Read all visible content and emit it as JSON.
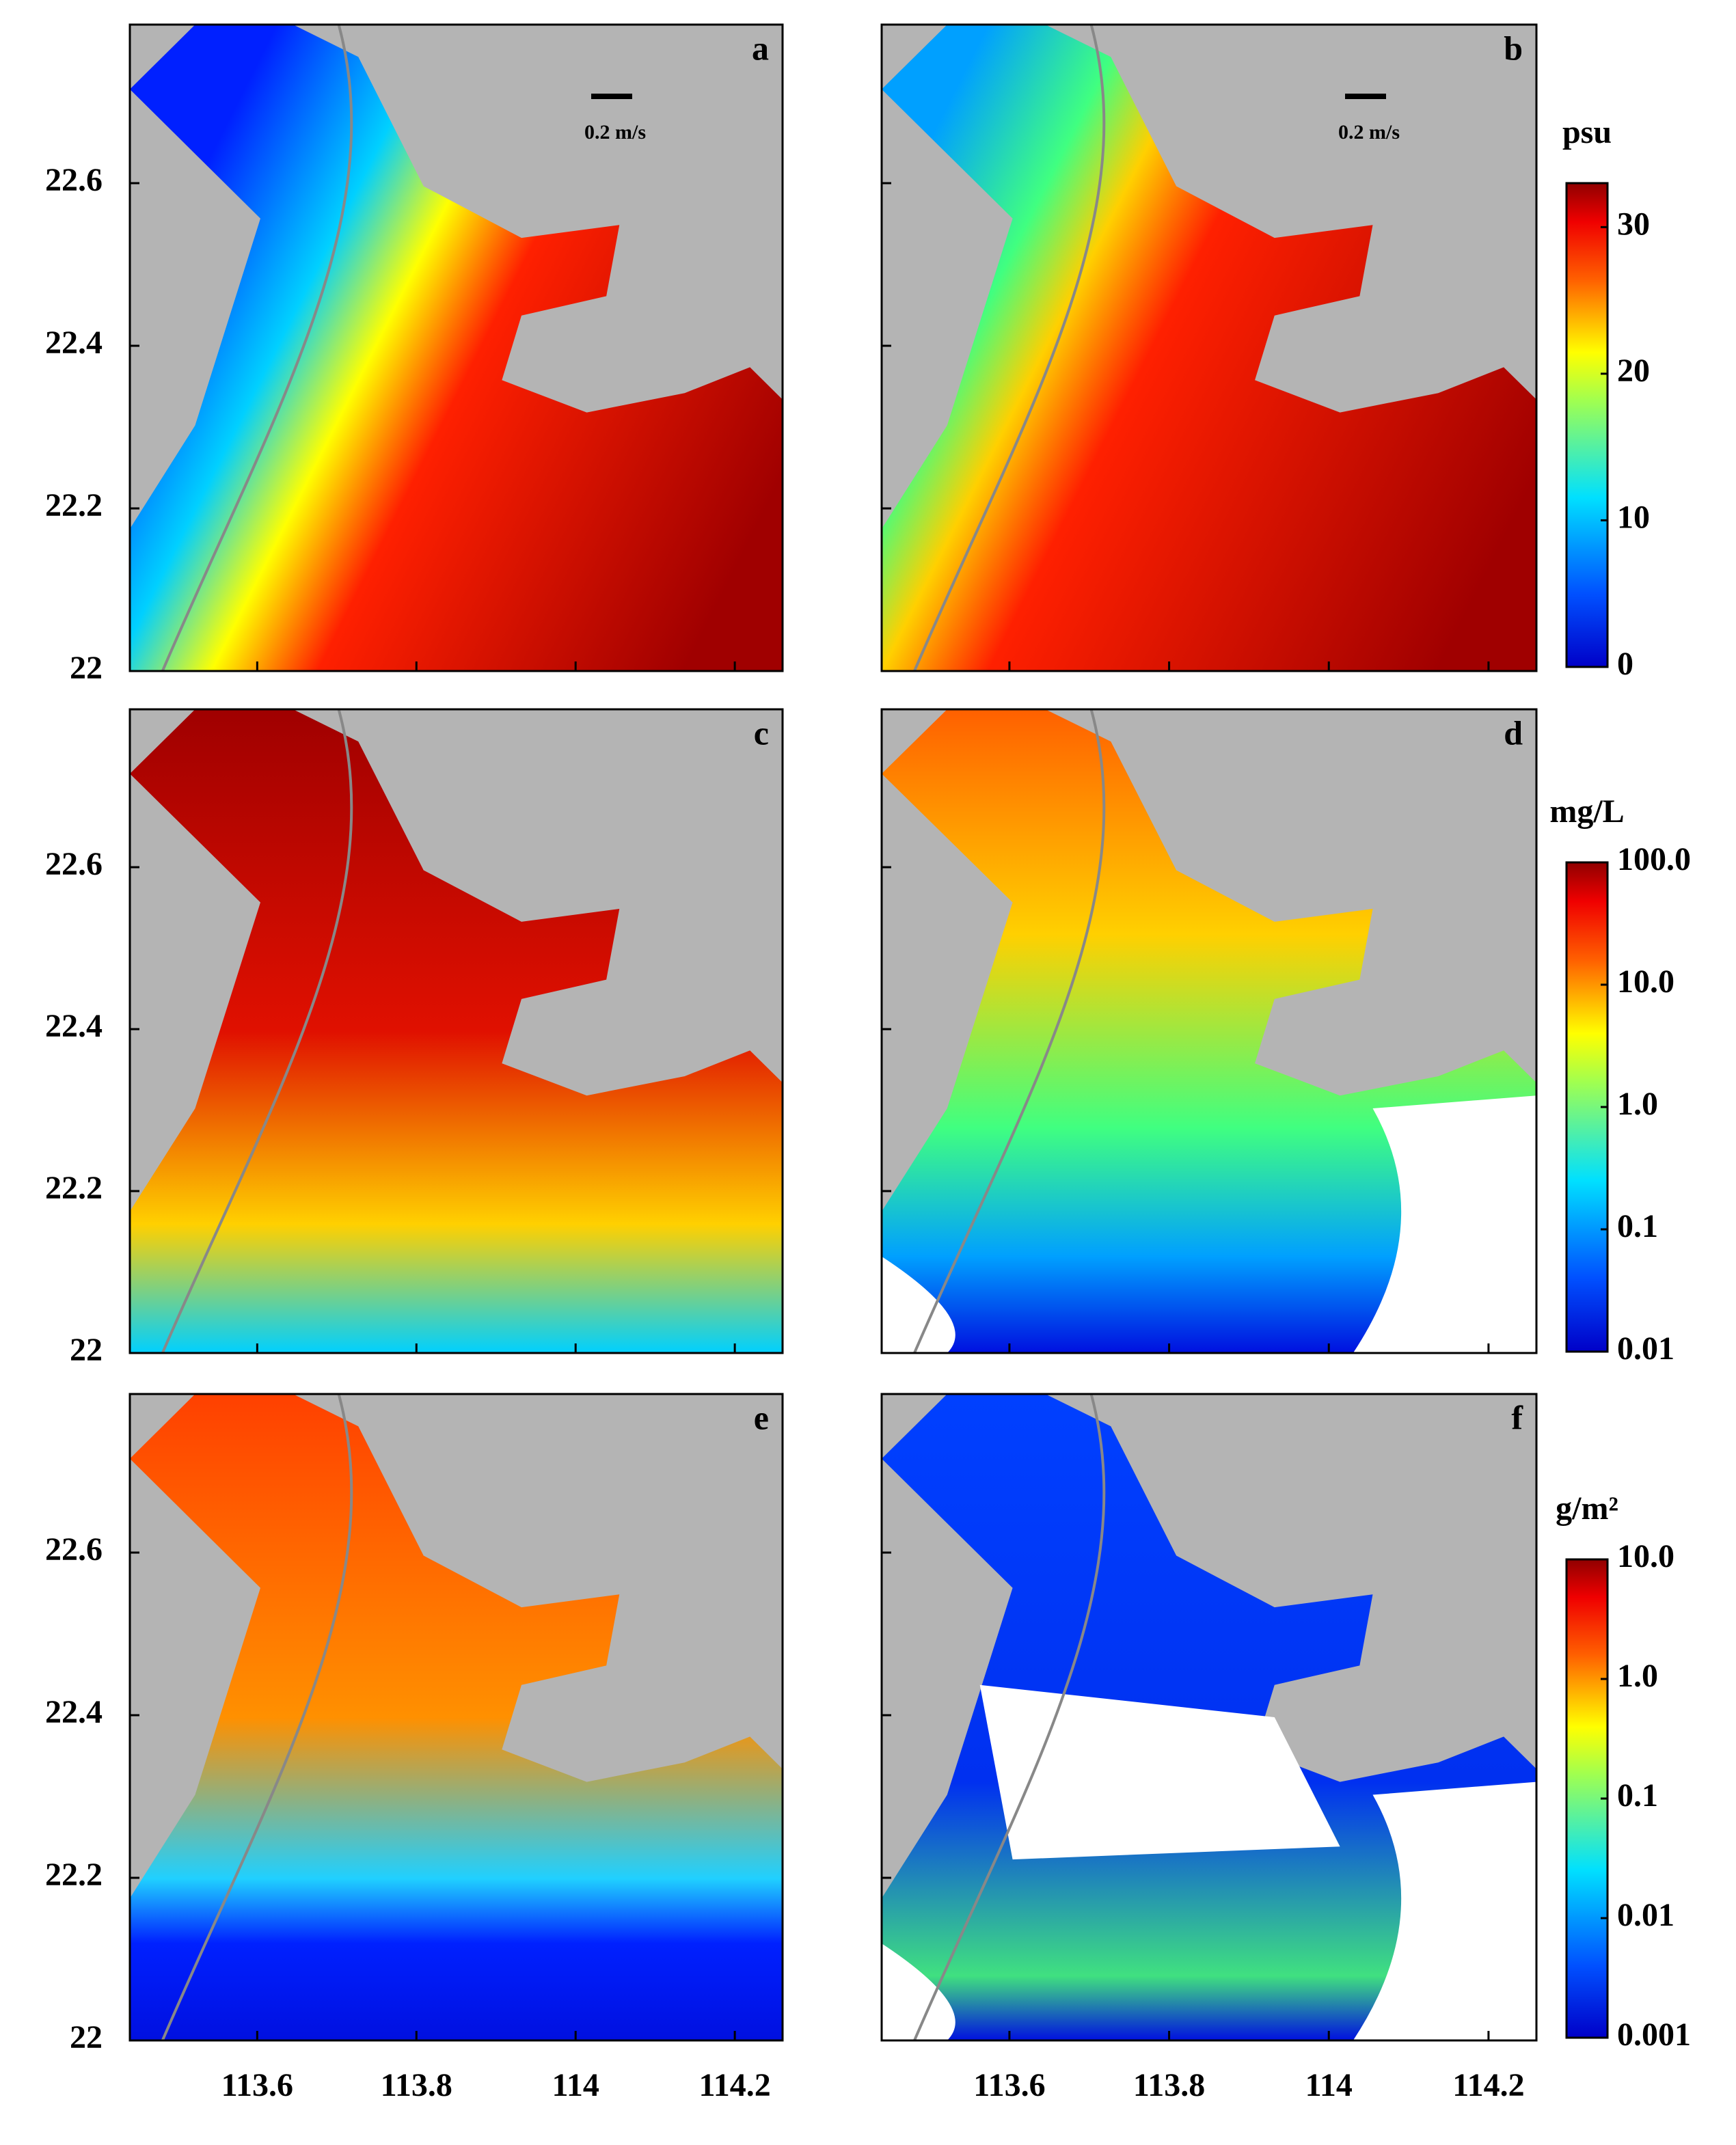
{
  "panels": [
    {
      "label": "a",
      "scale_label": "0.2 m/s"
    },
    {
      "label": "b",
      "scale_label": "0.2 m/s"
    },
    {
      "label": "c"
    },
    {
      "label": "d"
    },
    {
      "label": "e"
    },
    {
      "label": "f"
    }
  ],
  "axes": {
    "xlim": [
      113.44,
      114.26
    ],
    "ylim": [
      22,
      22.795
    ],
    "xticks": [
      113.6,
      113.8,
      114,
      114.2
    ],
    "yticks": [
      22,
      22.2,
      22.4,
      22.6
    ]
  },
  "colorbars": [
    {
      "unit": "psu",
      "scale": "linear",
      "lim": [
        0,
        33
      ],
      "ticks": [
        0,
        10,
        20,
        30
      ]
    },
    {
      "unit": "mg/L",
      "scale": "log",
      "lim": [
        0.01,
        100
      ],
      "ticks": [
        0.01,
        0.1,
        {
          "value": 1,
          "label": "1.0"
        },
        {
          "value": 10,
          "label": "10.0"
        },
        {
          "value": 100,
          "label": "100.0"
        }
      ]
    },
    {
      "unit": "g/m²",
      "scale": "log",
      "lim": [
        0.001,
        10
      ],
      "ticks": [
        0.001,
        0.01,
        0.1,
        {
          "value": 1,
          "label": "1.0"
        },
        {
          "value": 10,
          "label": "10.0"
        }
      ]
    }
  ]
}
